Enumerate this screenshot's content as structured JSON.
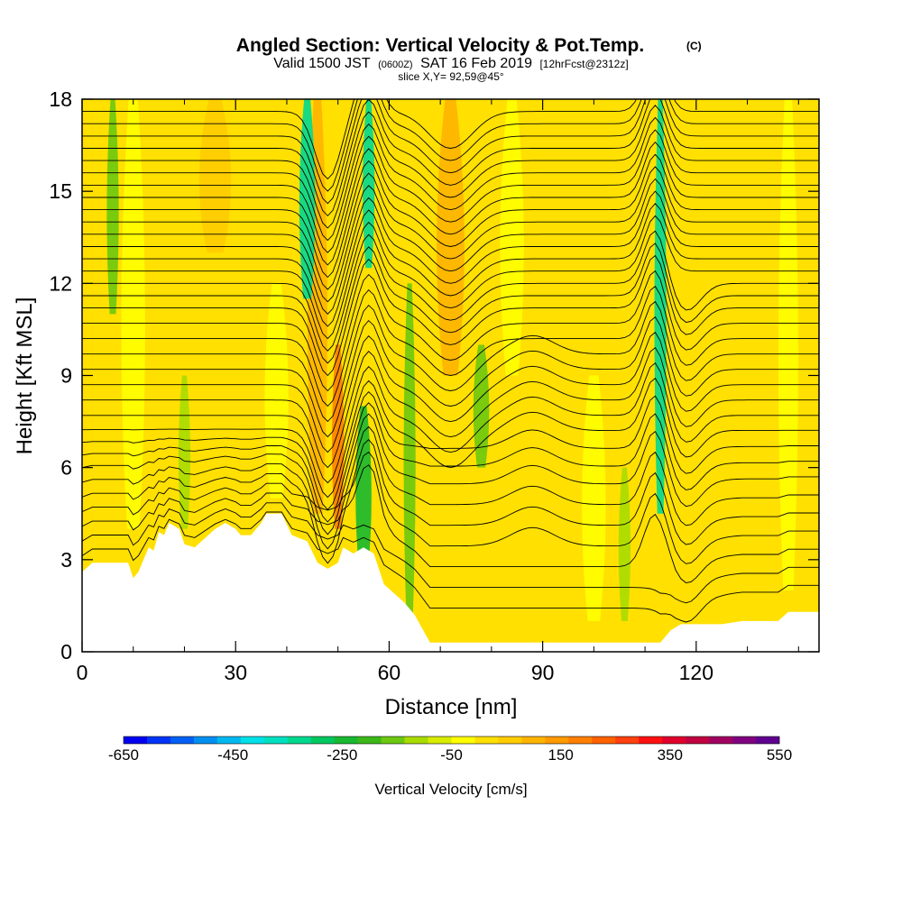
{
  "chart_data": {
    "type": "heatmap",
    "title": "Angled Section: Vertical Velocity & Pot.Temp.",
    "title_mark": "(C)",
    "subtitle": {
      "prefix": "Valid 1500 JST",
      "zulu": "(0600Z)",
      "date": "SAT 16 Feb 2019",
      "forecast": "[12hrFcst@2312z]"
    },
    "slice_label": "slice X,Y= 92,59@45°",
    "xlabel": "Distance [nm]",
    "ylabel": "Height [Kft MSL]",
    "xlim": [
      0,
      144
    ],
    "ylim": [
      0,
      18
    ],
    "xticks": [
      0,
      30,
      60,
      90,
      120
    ],
    "yticks": [
      0,
      3,
      6,
      9,
      12,
      15,
      18
    ],
    "grid": false,
    "colorbar": {
      "label": "Vertical Velocity [cm/s]",
      "tick_labels": [
        "-650",
        "-450",
        "-250",
        "-50",
        "150",
        "350",
        "550"
      ],
      "min": -650,
      "max": 550,
      "step": 50,
      "colors": [
        "#0000f0",
        "#0033f5",
        "#0060f5",
        "#0090f0",
        "#00b8f0",
        "#00e0e8",
        "#00e0c0",
        "#00d890",
        "#00c860",
        "#18b830",
        "#3cb818",
        "#6cc810",
        "#a8dc00",
        "#d8ec00",
        "#ffff00",
        "#ffe000",
        "#ffcc00",
        "#ffb400",
        "#ff9a00",
        "#ff8000",
        "#ff6000",
        "#ff4010",
        "#ff1010",
        "#e0002c",
        "#c00040",
        "#a00060",
        "#800080",
        "#600090"
      ]
    },
    "terrain_kft": [
      [
        0,
        2.6
      ],
      [
        2,
        2.9
      ],
      [
        9,
        2.9
      ],
      [
        10,
        2.4
      ],
      [
        11,
        2.6
      ],
      [
        13,
        3.4
      ],
      [
        14,
        3.3
      ],
      [
        15,
        3.9
      ],
      [
        16,
        3.8
      ],
      [
        17,
        4.2
      ],
      [
        19,
        4.0
      ],
      [
        20,
        3.5
      ],
      [
        22,
        3.4
      ],
      [
        24,
        3.7
      ],
      [
        26,
        4.0
      ],
      [
        28,
        4.2
      ],
      [
        30,
        4.0
      ],
      [
        31,
        3.8
      ],
      [
        33,
        3.8
      ],
      [
        35,
        4.2
      ],
      [
        36,
        4.5
      ],
      [
        39,
        4.5
      ],
      [
        41,
        3.8
      ],
      [
        44,
        3.6
      ],
      [
        46,
        2.9
      ],
      [
        48,
        2.7
      ],
      [
        50,
        2.9
      ],
      [
        51,
        3.4
      ],
      [
        53,
        3.2
      ],
      [
        55,
        3.4
      ],
      [
        57,
        3.2
      ],
      [
        59,
        2.2
      ],
      [
        63,
        1.6
      ],
      [
        65,
        1.2
      ],
      [
        67,
        0.6
      ],
      [
        68,
        0.3
      ],
      [
        113,
        0.3
      ],
      [
        115,
        0.7
      ],
      [
        117,
        0.9
      ],
      [
        125,
        0.9
      ],
      [
        129,
        1.0
      ],
      [
        136,
        1.0
      ],
      [
        138,
        1.3
      ],
      [
        144,
        1.3
      ]
    ],
    "updraft_bands": [
      {
        "x": 46,
        "top": 18,
        "bottom": 4.5,
        "width": 5,
        "w": 200
      },
      {
        "x": 50,
        "top": 10,
        "bottom": 4.0,
        "width": 3,
        "w": 300
      },
      {
        "x": 72,
        "top": 18,
        "bottom": 9,
        "width": 7,
        "w": 200
      },
      {
        "x": 26,
        "top": 18,
        "bottom": 13,
        "width": 8,
        "w": 150
      },
      {
        "x": 93,
        "top": 18,
        "bottom": 10,
        "width": 10,
        "w": 100
      },
      {
        "x": 128,
        "top": 18,
        "bottom": 1,
        "width": 10,
        "w": 100
      },
      {
        "x": 70,
        "top": 6,
        "bottom": 0.5,
        "width": 6,
        "w": 100
      },
      {
        "x": 118,
        "top": 10,
        "bottom": 1,
        "width": 8,
        "w": 100
      },
      {
        "x": 4,
        "top": 13,
        "bottom": 3,
        "width": 4,
        "w": 100
      }
    ],
    "downdraft_bands": [
      {
        "x": 44,
        "top": 18,
        "bottom": 11.5,
        "width": 4,
        "w": -300
      },
      {
        "x": 56,
        "top": 18,
        "bottom": 12.5,
        "width": 3,
        "w": -300
      },
      {
        "x": 113,
        "top": 18,
        "bottom": 4.5,
        "width": 3,
        "w": -300
      },
      {
        "x": 55,
        "top": 8,
        "bottom": 2.5,
        "width": 4,
        "w": -200
      },
      {
        "x": 64,
        "top": 12,
        "bottom": 1,
        "width": 3,
        "w": -100
      },
      {
        "x": 78,
        "top": 10,
        "bottom": 6,
        "width": 4,
        "w": -100
      },
      {
        "x": 6,
        "top": 18,
        "bottom": 11,
        "width": 3,
        "w": -100
      }
    ],
    "isentrope_base_kft": [
      1.2,
      1.9,
      2.6,
      3.3,
      4.0,
      4.7,
      5.4,
      6.0,
      6.6,
      7.2,
      7.7,
      8.2,
      8.7,
      9.2,
      9.7,
      10.2,
      10.7,
      11.2,
      11.6,
      12.0,
      12.4,
      12.8,
      13.2,
      13.6,
      14.0,
      14.4,
      14.8,
      15.2,
      15.6,
      16.0,
      16.4,
      16.8,
      17.2,
      17.6
    ]
  }
}
